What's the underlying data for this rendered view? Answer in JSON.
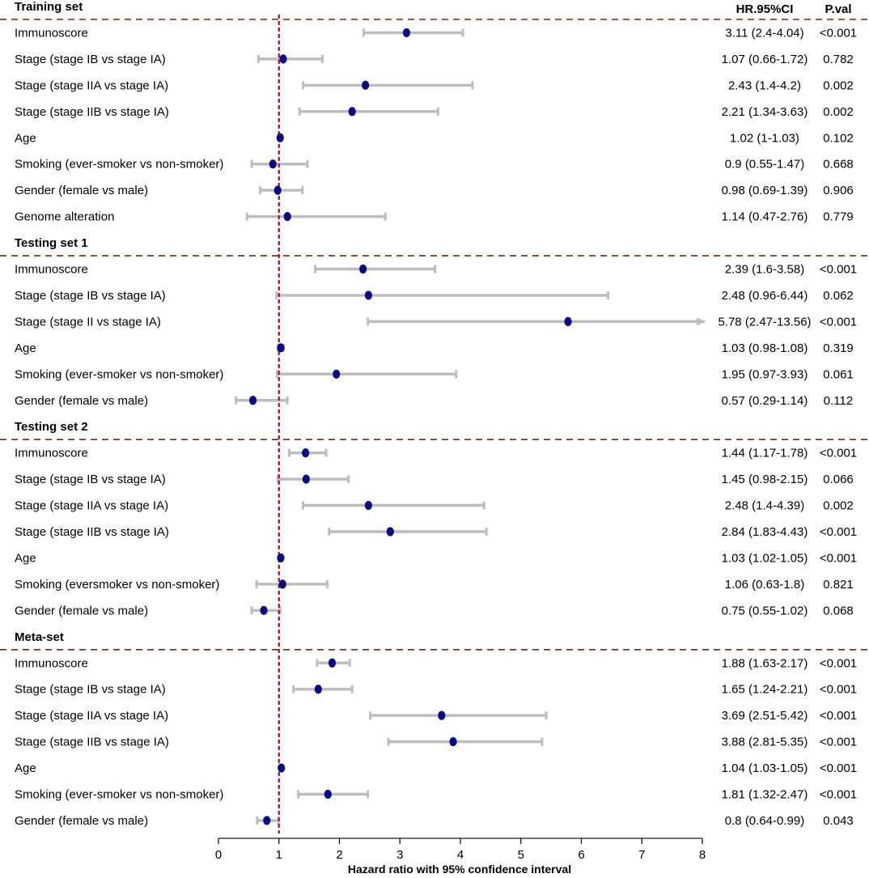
{
  "chart_data": {
    "type": "forest",
    "xlabel": "Hazard ratio with 95% confidence interval",
    "xlim": [
      0,
      8
    ],
    "xticks": [
      0,
      1,
      2,
      3,
      4,
      5,
      6,
      7,
      8
    ],
    "reference_line": 1,
    "columns": {
      "hr": "HR.95%CI",
      "p": "P.val"
    },
    "colors": {
      "point": "#0a0a80",
      "ci": "#bdbdbd",
      "reference": "#9b1030",
      "separator": "#6b2a12"
    },
    "groups": [
      {
        "title": "Training set",
        "rows": [
          {
            "label": "Immunoscore",
            "hr": 3.11,
            "lower": 2.4,
            "upper": 4.04,
            "hr_text": "3.11 (2.4-4.04)",
            "p": "<0.001"
          },
          {
            "label": "Stage (stage IB vs stage IA)",
            "hr": 1.07,
            "lower": 0.66,
            "upper": 1.72,
            "hr_text": "1.07 (0.66-1.72)",
            "p": "0.782"
          },
          {
            "label": "Stage (stage IIA vs stage IA)",
            "hr": 2.43,
            "lower": 1.4,
            "upper": 4.2,
            "hr_text": "2.43 (1.4-4.2)",
            "p": "0.002"
          },
          {
            "label": "Stage (stage IIB vs stage IA)",
            "hr": 2.21,
            "lower": 1.34,
            "upper": 3.63,
            "hr_text": "2.21 (1.34-3.63)",
            "p": "0.002"
          },
          {
            "label": "Age",
            "hr": 1.02,
            "lower": 1,
            "upper": 1.03,
            "hr_text": "1.02 (1-1.03)",
            "p": "0.102"
          },
          {
            "label": "Smoking (ever-smoker vs non-smoker)",
            "hr": 0.9,
            "lower": 0.55,
            "upper": 1.47,
            "hr_text": "0.9 (0.55-1.47)",
            "p": "0.668"
          },
          {
            "label": "Gender (female vs male)",
            "hr": 0.98,
            "lower": 0.69,
            "upper": 1.39,
            "hr_text": "0.98 (0.69-1.39)",
            "p": "0.906"
          },
          {
            "label": "Genome alteration",
            "hr": 1.14,
            "lower": 0.47,
            "upper": 2.76,
            "hr_text": "1.14 (0.47-2.76)",
            "p": "0.779"
          }
        ]
      },
      {
        "title": "Testing set 1",
        "rows": [
          {
            "label": "Immunoscore",
            "hr": 2.39,
            "lower": 1.6,
            "upper": 3.58,
            "hr_text": "2.39 (1.6-3.58)",
            "p": "<0.001"
          },
          {
            "label": "Stage (stage IB vs stage IA)",
            "hr": 2.48,
            "lower": 0.96,
            "upper": 6.44,
            "hr_text": "2.48 (0.96-6.44)",
            "p": "0.062"
          },
          {
            "label": "Stage (stage II vs stage IA)",
            "hr": 5.78,
            "lower": 2.47,
            "upper": 13.56,
            "hr_text": "5.78 (2.47-13.56)",
            "p": "<0.001"
          },
          {
            "label": "Age",
            "hr": 1.03,
            "lower": 0.98,
            "upper": 1.08,
            "hr_text": "1.03 (0.98-1.08)",
            "p": "0.319"
          },
          {
            "label": "Smoking (ever-smoker vs non-smoker)",
            "hr": 1.95,
            "lower": 0.97,
            "upper": 3.93,
            "hr_text": "1.95 (0.97-3.93)",
            "p": "0.061"
          },
          {
            "label": "Gender (female vs male)",
            "hr": 0.57,
            "lower": 0.29,
            "upper": 1.14,
            "hr_text": "0.57 (0.29-1.14)",
            "p": "0.112"
          }
        ]
      },
      {
        "title": "Testing set 2",
        "rows": [
          {
            "label": "Immunoscore",
            "hr": 1.44,
            "lower": 1.17,
            "upper": 1.78,
            "hr_text": "1.44 (1.17-1.78)",
            "p": "<0.001"
          },
          {
            "label": "Stage (stage IB vs stage IA)",
            "hr": 1.45,
            "lower": 0.98,
            "upper": 2.15,
            "hr_text": "1.45 (0.98-2.15)",
            "p": "0.066"
          },
          {
            "label": "Stage (stage IIA vs stage IA)",
            "hr": 2.48,
            "lower": 1.4,
            "upper": 4.39,
            "hr_text": "2.48 (1.4-4.39)",
            "p": "0.002"
          },
          {
            "label": "Stage (stage IIB vs stage IA)",
            "hr": 2.84,
            "lower": 1.83,
            "upper": 4.43,
            "hr_text": "2.84 (1.83-4.43)",
            "p": "<0.001"
          },
          {
            "label": "Age",
            "hr": 1.03,
            "lower": 1.02,
            "upper": 1.05,
            "hr_text": "1.03 (1.02-1.05)",
            "p": "<0.001"
          },
          {
            "label": "Smoking (eversmoker vs non-smoker)",
            "hr": 1.06,
            "lower": 0.63,
            "upper": 1.8,
            "hr_text": "1.06 (0.63-1.8)",
            "p": "0.821"
          },
          {
            "label": "Gender (female vs male)",
            "hr": 0.75,
            "lower": 0.55,
            "upper": 1.02,
            "hr_text": "0.75 (0.55-1.02)",
            "p": "0.068"
          }
        ]
      },
      {
        "title": "Meta-set",
        "rows": [
          {
            "label": "Immunoscore",
            "hr": 1.88,
            "lower": 1.63,
            "upper": 2.17,
            "hr_text": "1.88 (1.63-2.17)",
            "p": "<0.001"
          },
          {
            "label": "Stage (stage IB vs stage IA)",
            "hr": 1.65,
            "lower": 1.24,
            "upper": 2.21,
            "hr_text": "1.65 (1.24-2.21)",
            "p": "<0.001"
          },
          {
            "label": "Stage (stage IIA vs stage IA)",
            "hr": 3.69,
            "lower": 2.51,
            "upper": 5.42,
            "hr_text": "3.69 (2.51-5.42)",
            "p": "<0.001"
          },
          {
            "label": "Stage (stage IIB vs stage IA)",
            "hr": 3.88,
            "lower": 2.81,
            "upper": 5.35,
            "hr_text": "3.88 (2.81-5.35)",
            "p": "<0.001"
          },
          {
            "label": "Age",
            "hr": 1.04,
            "lower": 1.03,
            "upper": 1.05,
            "hr_text": "1.04 (1.03-1.05)",
            "p": "<0.001"
          },
          {
            "label": "Smoking (ever-smoker vs non-smoker)",
            "hr": 1.81,
            "lower": 1.32,
            "upper": 2.47,
            "hr_text": "1.81 (1.32-2.47)",
            "p": "<0.001"
          },
          {
            "label": "Gender (female vs male)",
            "hr": 0.8,
            "lower": 0.64,
            "upper": 0.99,
            "hr_text": "0.8 (0.64-0.99)",
            "p": "0.043"
          }
        ]
      }
    ]
  }
}
